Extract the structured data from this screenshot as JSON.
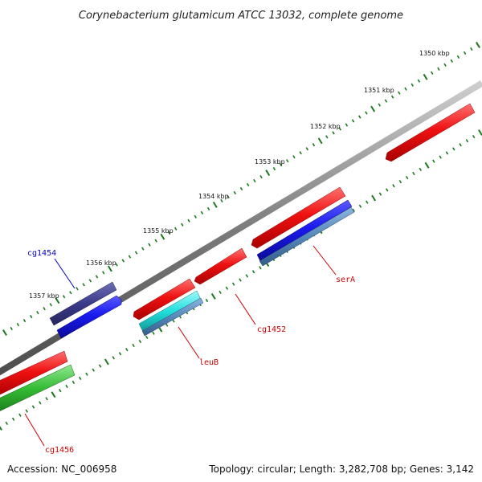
{
  "title": "Corynebacterium glutamicum ATCC 13032, complete genome",
  "footer": {
    "accession": "Accession: NC_006958",
    "summary": "Topology: circular; Length: 3,282,708 bp; Genes: 3,142"
  },
  "colors": {
    "backbone": "#7a7a7a",
    "ticks": "#1a7a1a",
    "red_gene": "#ee1111",
    "blue_gene": "#1a1aee",
    "navy_gene": "#3a3a8a",
    "cyan_gene": "#22dddd",
    "steel_gene": "#5588bb",
    "green_gene": "#33bb33",
    "label_red": "#cc0000",
    "label_blue": "#0000cc"
  },
  "scale": {
    "unit": "kbp",
    "labels": [
      "1350 kbp",
      "1351 kbp",
      "1352 kbp",
      "1353 kbp",
      "1354 kbp",
      "1355 kbp",
      "1356 kbp",
      "1357 kbp"
    ]
  },
  "gene_labels": [
    {
      "text": "cg1454",
      "color": "blue"
    },
    {
      "text": "serA",
      "color": "red"
    },
    {
      "text": "cg1452",
      "color": "red"
    },
    {
      "text": "leuB",
      "color": "red"
    },
    {
      "text": "cg1456",
      "color": "red"
    }
  ]
}
